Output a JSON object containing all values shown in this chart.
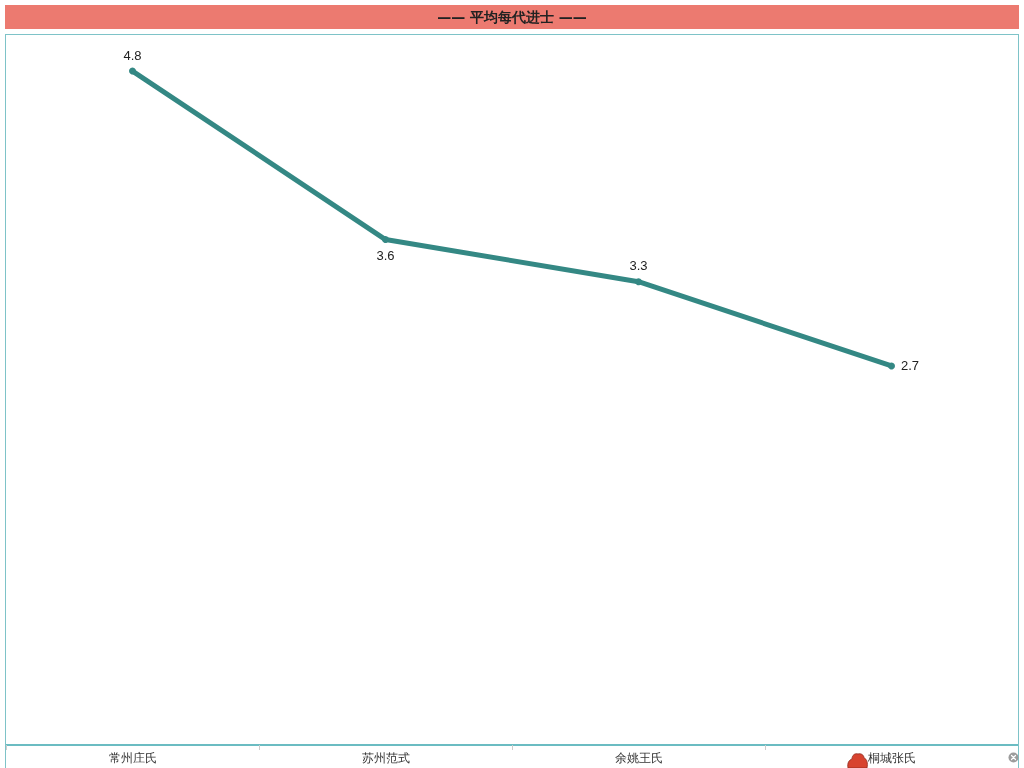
{
  "chart_data": {
    "type": "line",
    "title": "—— 平均每代进士 ——",
    "categories": [
      "常州庄氏",
      "苏州范式",
      "余姚王氏",
      "桐城张氏"
    ],
    "series": [
      {
        "color": "#348884",
        "values": [
          4.8,
          3.6,
          3.3,
          2.7
        ]
      }
    ],
    "data_labels": true,
    "grid": false,
    "marker": "circle",
    "line_style": "solid"
  }
}
